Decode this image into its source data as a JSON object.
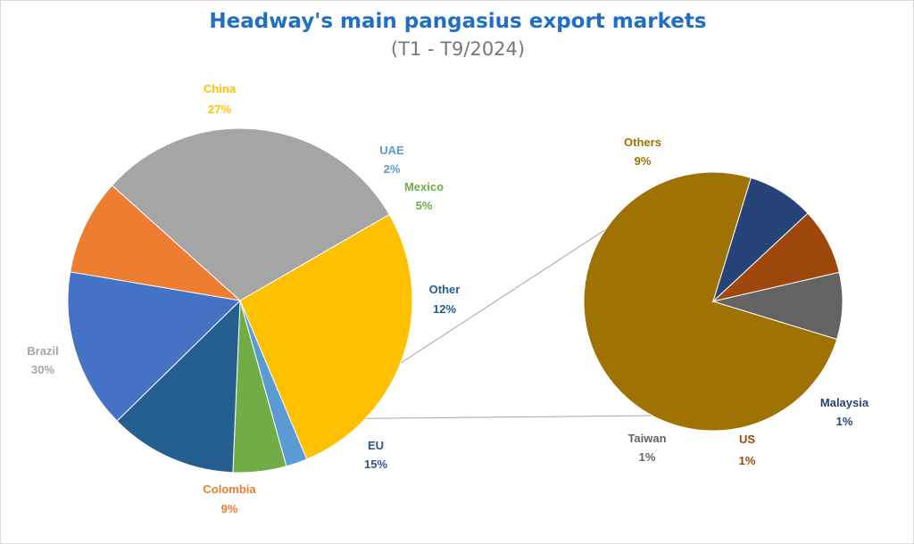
{
  "chart_data": {
    "type": "pie",
    "title": "Headway's main pangasius export markets",
    "subtitle": "(T1 - T9/2024)",
    "title_color": "#1f6fc5",
    "main_pie": {
      "slices": [
        {
          "label": "China",
          "value_text": "27%",
          "value": 27,
          "color": "#ffc000",
          "label_color": "#ffc000"
        },
        {
          "label": "UAE",
          "value_text": "2%",
          "value": 2,
          "color": "#5b9bd5",
          "label_color": "#5b9bd5"
        },
        {
          "label": "Mexico",
          "value_text": "5%",
          "value": 5,
          "color": "#70ad47",
          "label_color": "#70ad47"
        },
        {
          "label": "Other",
          "value_text": "12%",
          "value": 12,
          "color": "#255e91",
          "label_color": "#255e91"
        },
        {
          "label": "EU",
          "value_text": "15%",
          "value": 15,
          "color": "#4472c4",
          "label_color": "#2f5597"
        },
        {
          "label": "Colombia",
          "value_text": "9%",
          "value": 9,
          "color": "#ed7d31",
          "label_color": "#ed7d31"
        },
        {
          "label": "Brazil",
          "value_text": "30%",
          "value": 30,
          "color": "#a5a5a5",
          "label_color": "#a5a5a5"
        }
      ]
    },
    "secondary_pie": {
      "slices": [
        {
          "label": "Others",
          "value_text": "9%",
          "value": 9,
          "color": "#9e7203",
          "label_color": "#9e7203"
        },
        {
          "label": "Malaysia",
          "value_text": "1%",
          "value": 1,
          "color": "#264478",
          "label_color": "#264478"
        },
        {
          "label": "US",
          "value_text": "1%",
          "value": 1,
          "color": "#9e480e",
          "label_color": "#9e480e"
        },
        {
          "label": "Taiwan",
          "value_text": "1%",
          "value": 1,
          "color": "#636363",
          "label_color": "#636363"
        }
      ]
    },
    "connector_color": "#a6a6a6"
  }
}
